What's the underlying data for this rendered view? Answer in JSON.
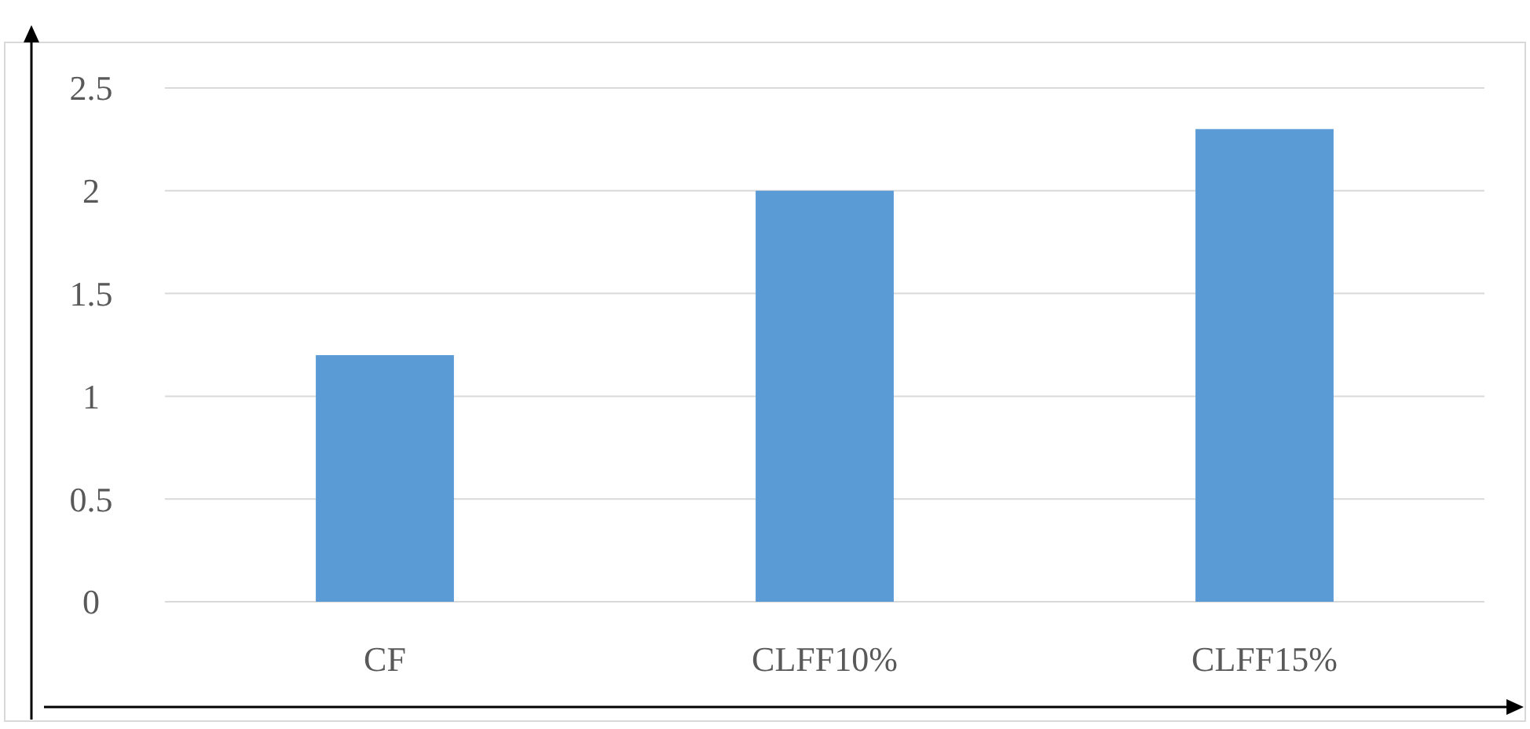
{
  "chart_data": {
    "type": "bar",
    "categories": [
      "CF",
      "CLFF10%",
      "CLFF15%"
    ],
    "values": [
      1.2,
      2.0,
      2.3
    ],
    "color": "#5b9bd5",
    "ylim": [
      0,
      2.5
    ],
    "yticks": [
      0,
      0.5,
      1,
      1.5,
      2,
      2.5
    ],
    "grid": "y"
  }
}
